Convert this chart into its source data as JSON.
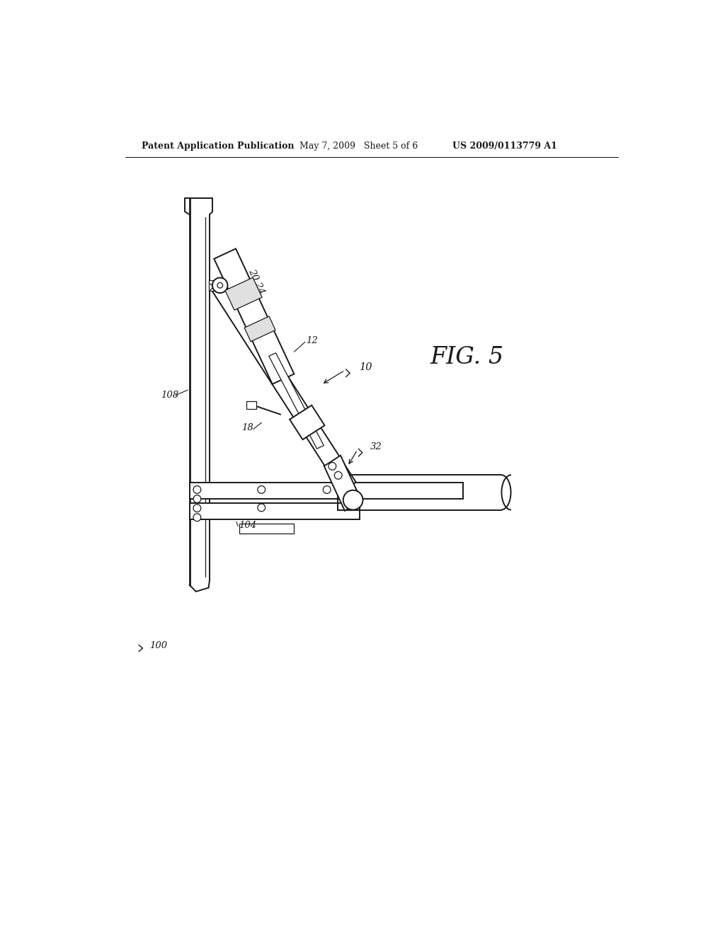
{
  "bg_color": "#ffffff",
  "header_left": "Patent Application Publication",
  "header_mid": "May 7, 2009   Sheet 5 of 6",
  "header_right": "US 2009/0113779 A1",
  "fig_label": "FIG. 5"
}
